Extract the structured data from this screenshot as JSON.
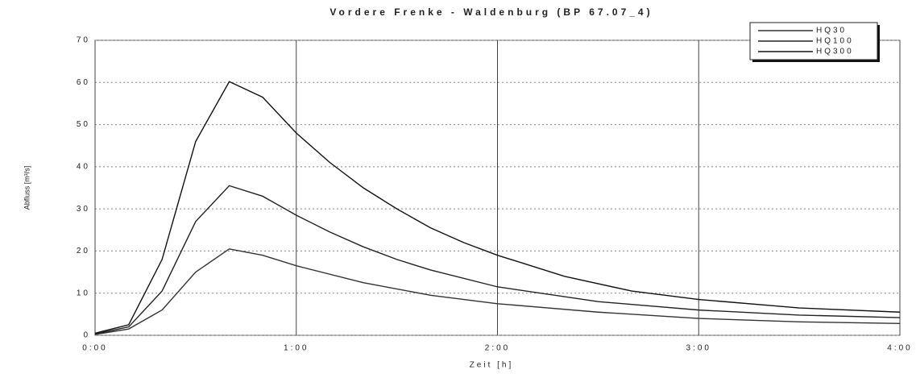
{
  "chart_data": {
    "type": "line",
    "title": "Vordere Frenke - Waldenburg (BP 67.07_4)",
    "xlabel": "Zeit [h]",
    "ylabel": "Abfluss [m³/s]",
    "xlim": [
      0,
      4
    ],
    "xticks": [
      {
        "value": 0,
        "label": "0:00"
      },
      {
        "value": 1,
        "label": "1:00"
      },
      {
        "value": 2,
        "label": "2:00"
      },
      {
        "value": 3,
        "label": "3:00"
      },
      {
        "value": 4,
        "label": "4:00"
      }
    ],
    "ylim": [
      0,
      70
    ],
    "yticks": [
      0,
      10,
      20,
      30,
      40,
      50,
      60,
      70
    ],
    "grid": true,
    "legend": "upper right",
    "series": [
      {
        "name": "HQ30",
        "color": "#333333",
        "x": [
          0,
          0.167,
          0.333,
          0.5,
          0.667,
          0.833,
          1.0,
          1.333,
          1.667,
          2.0,
          2.5,
          3.0,
          3.5,
          4.0
        ],
        "values": [
          0.2,
          1.5,
          6,
          15,
          20.5,
          19,
          16.5,
          12.5,
          9.5,
          7.5,
          5.5,
          4,
          3.2,
          2.8
        ]
      },
      {
        "name": "HQ100",
        "color": "#222222",
        "x": [
          0,
          0.167,
          0.333,
          0.5,
          0.667,
          0.833,
          1.0,
          1.167,
          1.333,
          1.5,
          1.667,
          2.0,
          2.5,
          3.0,
          3.5,
          4.0
        ],
        "values": [
          0.3,
          2,
          10.5,
          27,
          35.5,
          33,
          28.5,
          24.5,
          21,
          18,
          15.5,
          11.5,
          8,
          6,
          4.8,
          4.2
        ]
      },
      {
        "name": "HQ300",
        "color": "#111111",
        "x": [
          0,
          0.167,
          0.333,
          0.5,
          0.667,
          0.833,
          1.0,
          1.167,
          1.333,
          1.5,
          1.667,
          1.833,
          2.0,
          2.333,
          2.667,
          3.0,
          3.5,
          4.0
        ],
        "values": [
          0.5,
          2.5,
          18,
          46,
          60.2,
          56.5,
          48,
          41,
          35,
          30,
          25.5,
          22,
          19,
          14,
          10.5,
          8.5,
          6.5,
          5.5
        ]
      }
    ]
  }
}
